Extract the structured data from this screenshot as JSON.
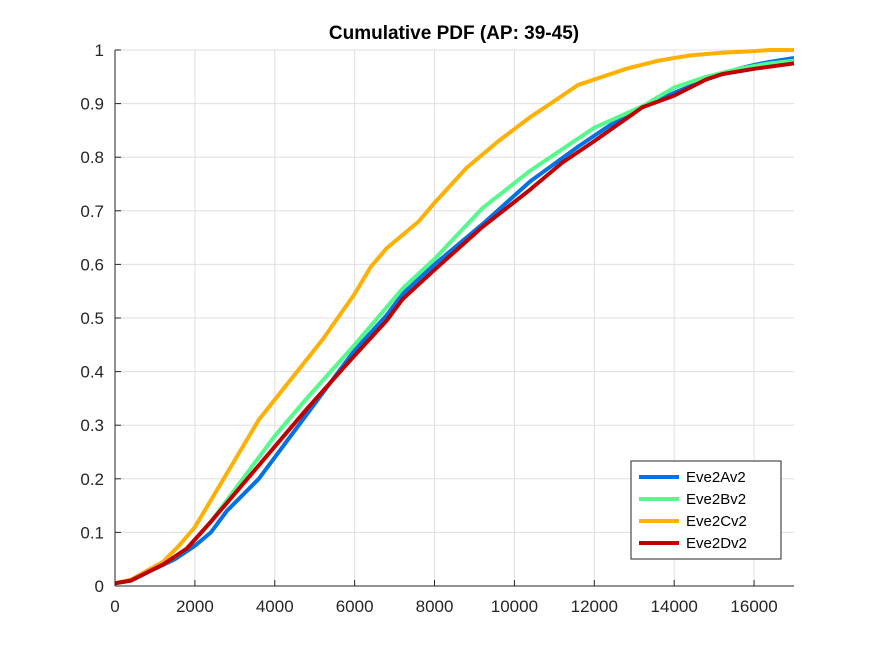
{
  "chart_data": {
    "type": "line",
    "title": "Cumulative PDF (AP: 39-45)",
    "xlabel": "",
    "ylabel": "",
    "xlim": [
      0,
      17000
    ],
    "ylim": [
      0,
      1
    ],
    "xticks": [
      0,
      2000,
      4000,
      6000,
      8000,
      10000,
      12000,
      14000,
      16000
    ],
    "xtick_labels": [
      "0",
      "2000",
      "4000",
      "6000",
      "8000",
      "10000",
      "12000",
      "14000",
      "16000"
    ],
    "yticks": [
      0,
      0.1,
      0.2,
      0.3,
      0.4,
      0.5,
      0.6,
      0.7,
      0.8,
      0.9,
      1
    ],
    "ytick_labels": [
      "0",
      "0.1",
      "0.2",
      "0.3",
      "0.4",
      "0.5",
      "0.6",
      "0.7",
      "0.8",
      "0.9",
      "1"
    ],
    "grid": true,
    "legend_position": "bottom-right",
    "series": [
      {
        "name": "Eve2Av2",
        "color": "#0072e6",
        "x": [
          0,
          400,
          800,
          1500,
          2000,
          2400,
          2800,
          3600,
          4800,
          6000,
          6800,
          7200,
          8000,
          9200,
          10400,
          11600,
          12400,
          13200,
          14000,
          14800,
          15600,
          16000,
          16400,
          17000
        ],
        "y": [
          0.005,
          0.01,
          0.025,
          0.05,
          0.075,
          0.1,
          0.14,
          0.2,
          0.32,
          0.44,
          0.505,
          0.545,
          0.6,
          0.675,
          0.755,
          0.82,
          0.86,
          0.895,
          0.92,
          0.945,
          0.965,
          0.972,
          0.978,
          0.985
        ]
      },
      {
        "name": "Eve2Bv2",
        "color": "#54fa8c",
        "x": [
          0,
          400,
          1200,
          1800,
          2400,
          3200,
          4000,
          4800,
          6000,
          6800,
          7200,
          8000,
          9200,
          10400,
          11600,
          12000,
          13200,
          14000,
          14800,
          15600,
          16400,
          17000
        ],
        "y": [
          0.005,
          0.01,
          0.04,
          0.07,
          0.12,
          0.2,
          0.28,
          0.35,
          0.45,
          0.52,
          0.555,
          0.61,
          0.705,
          0.775,
          0.835,
          0.855,
          0.895,
          0.93,
          0.95,
          0.965,
          0.975,
          0.98
        ]
      },
      {
        "name": "Eve2Cv2",
        "color": "#ffb000",
        "x": [
          0,
          400,
          1200,
          1600,
          2000,
          2400,
          3200,
          3600,
          4400,
          5200,
          6000,
          6400,
          6800,
          7600,
          8000,
          8800,
          9600,
          10400,
          11200,
          11600,
          12000,
          12800,
          13600,
          14400,
          15200,
          16000,
          16400,
          17000
        ],
        "y": [
          0.005,
          0.012,
          0.045,
          0.075,
          0.11,
          0.16,
          0.26,
          0.31,
          0.385,
          0.46,
          0.545,
          0.595,
          0.63,
          0.68,
          0.715,
          0.78,
          0.83,
          0.875,
          0.915,
          0.935,
          0.945,
          0.965,
          0.98,
          0.99,
          0.995,
          0.998,
          1.0,
          1.0
        ]
      },
      {
        "name": "Eve2Dv2",
        "color": "#c00000",
        "x": [
          0,
          400,
          1200,
          1800,
          2400,
          3200,
          4000,
          4800,
          6000,
          6800,
          7200,
          8000,
          9200,
          10400,
          11200,
          12000,
          13200,
          14000,
          14800,
          15200,
          16000,
          17000
        ],
        "y": [
          0.005,
          0.01,
          0.04,
          0.07,
          0.12,
          0.19,
          0.26,
          0.33,
          0.43,
          0.495,
          0.535,
          0.59,
          0.67,
          0.74,
          0.79,
          0.83,
          0.893,
          0.915,
          0.945,
          0.955,
          0.965,
          0.975
        ]
      }
    ]
  }
}
